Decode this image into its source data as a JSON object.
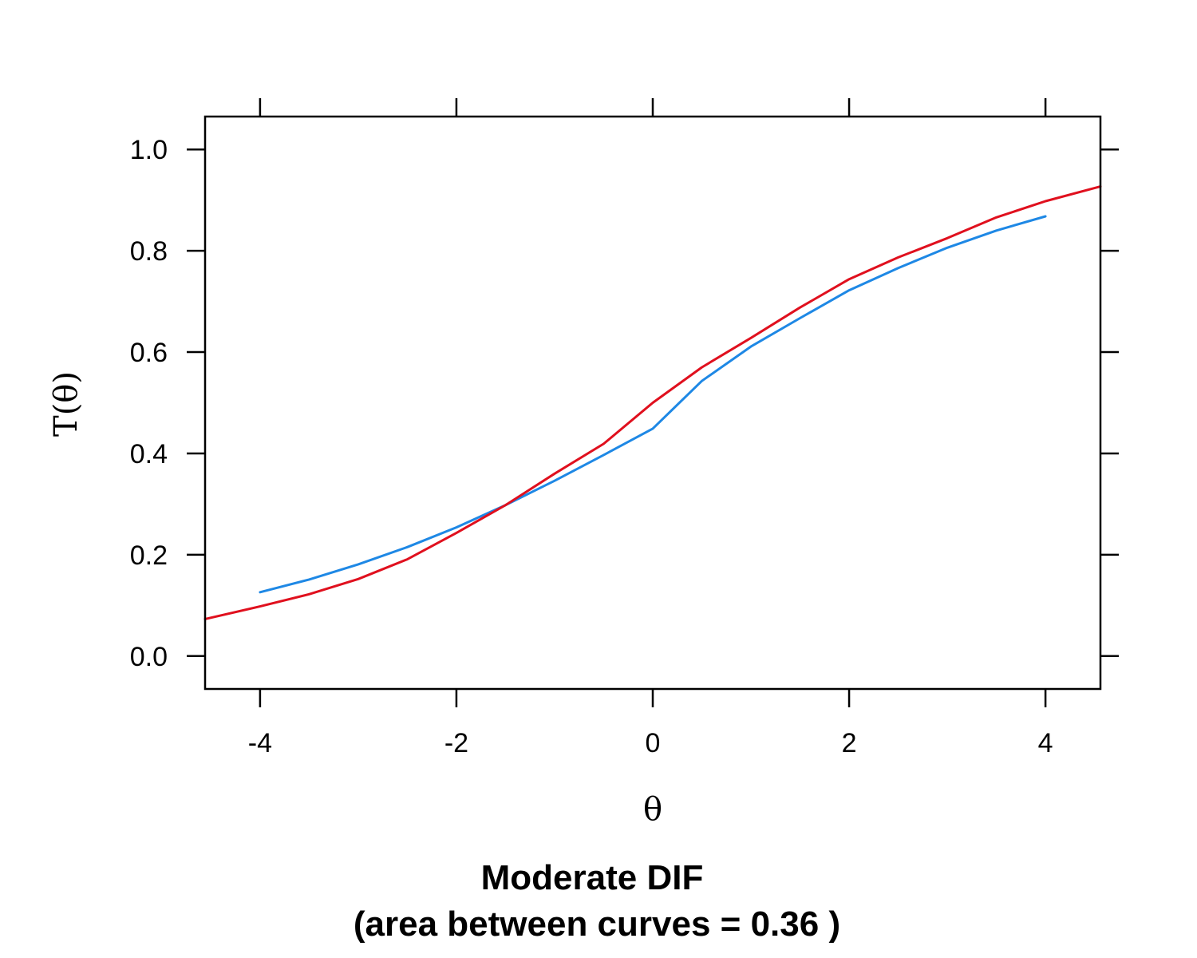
{
  "chart_data": {
    "type": "line",
    "title": "",
    "xlabel": "θ",
    "ylabel": "T(θ)",
    "xlim": [
      -4.56,
      4.56
    ],
    "ylim": [
      -0.065,
      1.065
    ],
    "x_ticks": [
      -4,
      -2,
      0,
      2,
      4
    ],
    "x_tick_labels": [
      "-4",
      "-2",
      "0",
      "2",
      "4"
    ],
    "y_ticks": [
      0.0,
      0.2,
      0.4,
      0.6,
      0.8,
      1.0
    ],
    "y_tick_labels": [
      "0.0",
      "0.2",
      "0.4",
      "0.6",
      "0.8",
      "1.0"
    ],
    "grid": false,
    "legend": "none",
    "series": [
      {
        "color": "#1E88E5",
        "x": [
          -4,
          -3.5,
          -3,
          -2.5,
          -2,
          -1.5,
          -1,
          -0.5,
          0,
          0.5,
          1,
          1.5,
          2,
          2.5,
          3,
          3.5,
          4
        ],
        "y": [
          0.126,
          0.151,
          0.181,
          0.215,
          0.254,
          0.298,
          0.346,
          0.397,
          0.449,
          0.543,
          0.611,
          0.667,
          0.722,
          0.766,
          0.806,
          0.84,
          0.868
        ]
      },
      {
        "color": "#E0101E",
        "x": [
          -4.56,
          -4,
          -3.5,
          -3,
          -2.5,
          -2,
          -1.5,
          -1,
          -0.5,
          0,
          0.5,
          1,
          1.5,
          2,
          2.5,
          3,
          3.5,
          4,
          4.56
        ],
        "y": [
          0.073,
          0.098,
          0.122,
          0.152,
          0.191,
          0.243,
          0.298,
          0.36,
          0.419,
          0.5,
          0.57,
          0.628,
          0.688,
          0.744,
          0.787,
          0.825,
          0.866,
          0.898,
          0.927
        ]
      }
    ],
    "caption_lines": [
      "Moderate DIF",
      "(area between curves = 0.36 )"
    ]
  }
}
